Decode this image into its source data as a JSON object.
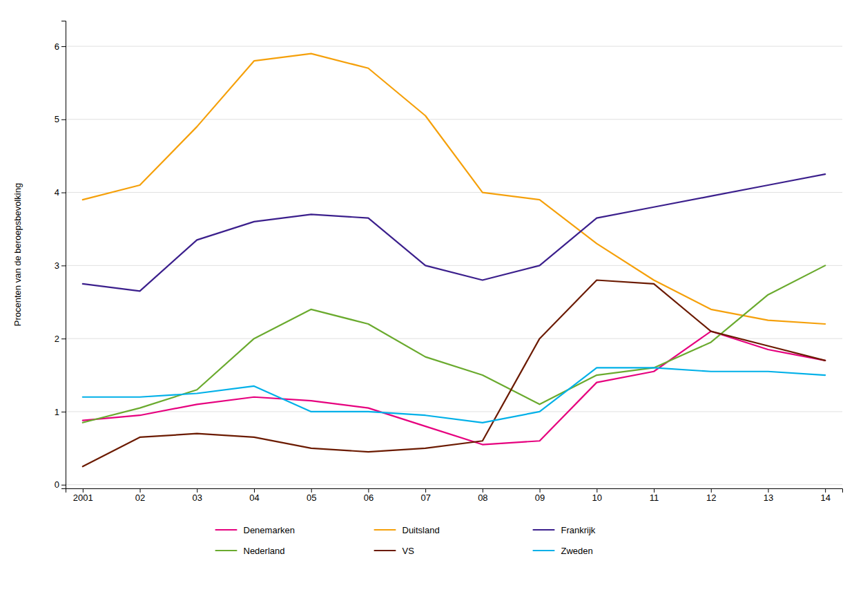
{
  "chart_data": {
    "type": "line",
    "y_label": "Procenten van de beroepsbevolking",
    "categories": [
      "2001",
      "02",
      "03",
      "04",
      "05",
      "06",
      "07",
      "08",
      "09",
      "10",
      "11",
      "12",
      "13",
      "14"
    ],
    "series": [
      {
        "name": "Denemarken",
        "color": "#e6007e",
        "values": [
          0.88,
          0.95,
          1.1,
          1.2,
          1.15,
          1.05,
          0.8,
          0.55,
          0.6,
          1.4,
          1.55,
          2.1,
          1.85,
          1.7
        ]
      },
      {
        "name": "Duitsland",
        "color": "#f5a00a",
        "values": [
          3.9,
          4.1,
          4.9,
          5.8,
          5.9,
          5.7,
          5.05,
          4.0,
          3.9,
          3.3,
          2.8,
          2.4,
          2.25,
          2.2
        ]
      },
      {
        "name": "Frankrijk",
        "color": "#3b1f8c",
        "values": [
          2.75,
          2.65,
          3.35,
          3.6,
          3.7,
          3.65,
          3.0,
          2.8,
          3.0,
          3.65,
          3.8,
          3.95,
          4.1,
          4.25
        ]
      },
      {
        "name": "Nederland",
        "color": "#6aaa2e",
        "values": [
          0.85,
          1.05,
          1.3,
          2.0,
          2.4,
          2.2,
          1.75,
          1.5,
          1.1,
          1.5,
          1.6,
          1.95,
          2.6,
          3.0
        ]
      },
      {
        "name": "VS",
        "color": "#6b1a00",
        "values": [
          0.25,
          0.65,
          0.7,
          0.65,
          0.5,
          0.45,
          0.5,
          0.6,
          2.0,
          2.8,
          2.75,
          2.1,
          1.9,
          1.7
        ]
      },
      {
        "name": "Zweden",
        "color": "#00b0e8",
        "values": [
          1.2,
          1.2,
          1.25,
          1.35,
          1.0,
          1.0,
          0.95,
          0.85,
          1.0,
          1.6,
          1.6,
          1.55,
          1.55,
          1.5
        ]
      }
    ],
    "ylim": [
      -0.05,
      6.35
    ],
    "yticks": [
      0,
      1,
      2,
      3,
      4,
      5,
      6
    ],
    "grid": true,
    "legend": "bottom"
  }
}
